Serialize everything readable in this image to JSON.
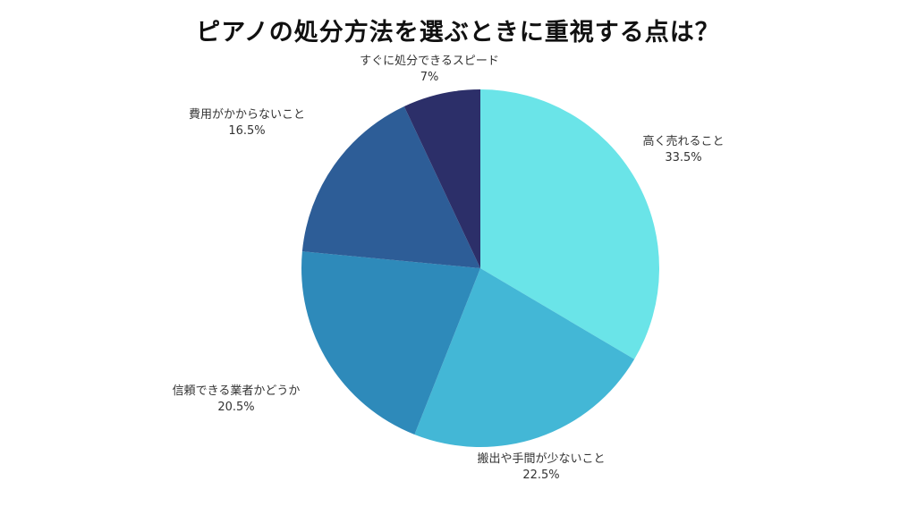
{
  "chart_data": {
    "type": "pie",
    "title": "ピアノの処分方法を選ぶときに重視する点は？",
    "slices": [
      {
        "label": "高く売れること",
        "value": 33.5,
        "value_label": "33.5%",
        "color": "#6ae4e8"
      },
      {
        "label": "搬出や手間が少ないこと",
        "value": 22.5,
        "value_label": "22.5%",
        "color": "#43b7d6"
      },
      {
        "label": "信頼できる業者かどうか",
        "value": 20.5,
        "value_label": "20.5%",
        "color": "#2e8aba"
      },
      {
        "label": "費用がかからないこと",
        "value": 16.5,
        "value_label": "16.5%",
        "color": "#2d5d97"
      },
      {
        "label": "すぐに処分できるスピード",
        "value": 7,
        "value_label": "7%",
        "color": "#2c2f69"
      }
    ]
  }
}
